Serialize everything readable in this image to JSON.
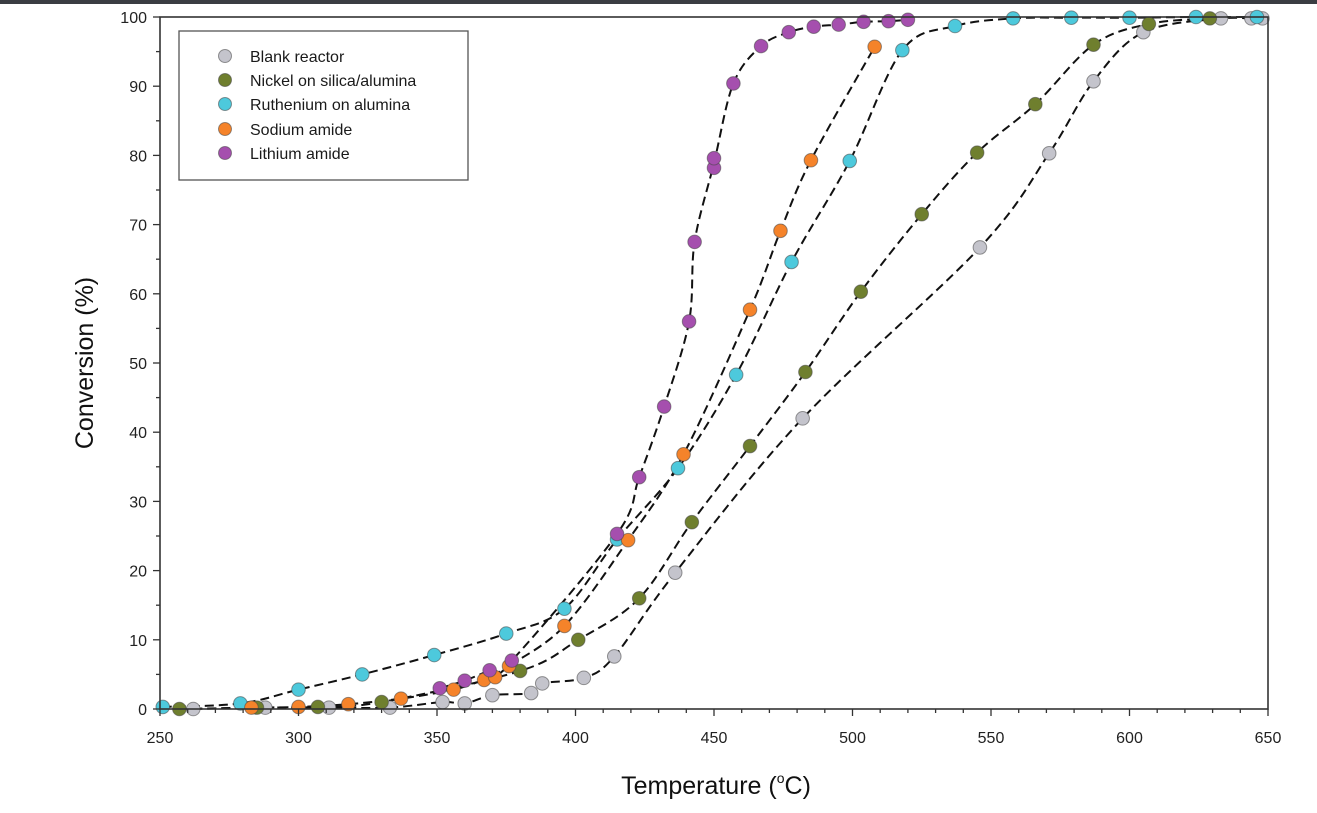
{
  "chart_data": {
    "type": "scatter",
    "title": "",
    "xlabel": "Temperature (",
    "xlabel_sup": "o",
    "xlabel_suffix": "C)",
    "ylabel": "Conversion (%)",
    "xlim": [
      250,
      650
    ],
    "ylim": [
      0,
      100
    ],
    "x_ticks": [
      "250",
      "300",
      "350",
      "400",
      "450",
      "500",
      "550",
      "600",
      "650"
    ],
    "y_ticks": [
      "0",
      "10",
      "20",
      "30",
      "40",
      "50",
      "60",
      "70",
      "80",
      "90",
      "100"
    ],
    "grid": false,
    "legend_position": "top-left",
    "fit_lines": "dashed black curves through each series",
    "series": [
      {
        "name": "Blank reactor",
        "color": "#c4c4cc",
        "points": [
          [
            262,
            0
          ],
          [
            288,
            0.2
          ],
          [
            311,
            0.2
          ],
          [
            333,
            0.2
          ],
          [
            352,
            1
          ],
          [
            360,
            0.8
          ],
          [
            370,
            2
          ],
          [
            384,
            2.3
          ],
          [
            388,
            3.7
          ],
          [
            403,
            4.5
          ],
          [
            414,
            7.6
          ],
          [
            436,
            19.7
          ],
          [
            482,
            42
          ],
          [
            546,
            66.7
          ],
          [
            571,
            80.3
          ],
          [
            587,
            90.7
          ],
          [
            605,
            97.8
          ],
          [
            633,
            99.8
          ],
          [
            644,
            99.8
          ],
          [
            648,
            99.8
          ]
        ]
      },
      {
        "name": "Nickel on silica/alumina",
        "color": "#6f7f2e",
        "points": [
          [
            257,
            0
          ],
          [
            285,
            0.2
          ],
          [
            307,
            0.3
          ],
          [
            330,
            1
          ],
          [
            380,
            5.5
          ],
          [
            401,
            10
          ],
          [
            423,
            16
          ],
          [
            442,
            27
          ],
          [
            463,
            38
          ],
          [
            483,
            48.7
          ],
          [
            503,
            60.3
          ],
          [
            525,
            71.5
          ],
          [
            545,
            80.4
          ],
          [
            566,
            87.4
          ],
          [
            587,
            96
          ],
          [
            607,
            99
          ],
          [
            629,
            99.8
          ]
        ]
      },
      {
        "name": "Ruthenium on alumina",
        "color": "#4dc9dc",
        "points": [
          [
            251,
            0.3
          ],
          [
            279,
            0.8
          ],
          [
            300,
            2.8
          ],
          [
            323,
            5
          ],
          [
            349,
            7.8
          ],
          [
            375,
            10.9
          ],
          [
            396,
            14.5
          ],
          [
            415,
            24.5
          ],
          [
            437,
            34.8
          ],
          [
            458,
            48.3
          ],
          [
            478,
            64.6
          ],
          [
            499,
            79.2
          ],
          [
            518,
            95.2
          ],
          [
            537,
            98.7
          ],
          [
            558,
            99.8
          ],
          [
            579,
            99.9
          ],
          [
            600,
            99.9
          ],
          [
            624,
            100
          ],
          [
            646,
            100
          ]
        ]
      },
      {
        "name": "Sodium amide",
        "color": "#f5832a",
        "points": [
          [
            283,
            0.2
          ],
          [
            300,
            0.3
          ],
          [
            318,
            0.7
          ],
          [
            337,
            1.5
          ],
          [
            356,
            2.8
          ],
          [
            367,
            4.2
          ],
          [
            371,
            4.6
          ],
          [
            376,
            6.2
          ],
          [
            396,
            12
          ],
          [
            419,
            24.4
          ],
          [
            439,
            36.8
          ],
          [
            463,
            57.7
          ],
          [
            474,
            69.1
          ],
          [
            485,
            79.3
          ],
          [
            508,
            95.7
          ]
        ]
      },
      {
        "name": "Lithium amide",
        "color": "#a54fae",
        "points": [
          [
            351,
            3
          ],
          [
            360,
            4.1
          ],
          [
            369,
            5.6
          ],
          [
            377,
            7
          ],
          [
            415,
            25.3
          ],
          [
            423,
            33.5
          ],
          [
            432,
            43.7
          ],
          [
            441,
            56
          ],
          [
            443,
            67.5
          ],
          [
            450,
            78.2
          ],
          [
            450,
            79.6
          ],
          [
            457,
            90.4
          ],
          [
            467,
            95.8
          ],
          [
            477,
            97.8
          ],
          [
            486,
            98.6
          ],
          [
            495,
            98.9
          ],
          [
            504,
            99.3
          ],
          [
            513,
            99.4
          ],
          [
            520,
            99.6
          ]
        ]
      }
    ]
  }
}
